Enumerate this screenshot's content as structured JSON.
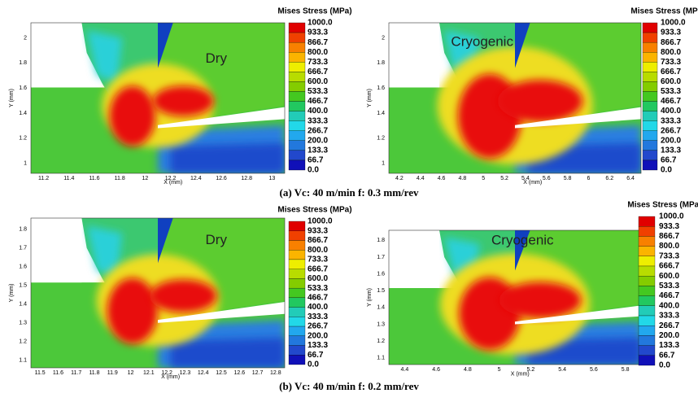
{
  "colorbar": {
    "title": "Mises Stress (MPa)",
    "labels": [
      "1000.0",
      "933.3",
      "866.7",
      "800.0",
      "733.3",
      "666.7",
      "600.0",
      "533.3",
      "466.7",
      "400.0",
      "333.3",
      "266.7",
      "200.0",
      "133.3",
      "66.7",
      "0.0"
    ]
  },
  "panels": [
    {
      "label": "Dry",
      "x_axis": "X (mm)",
      "y_axis": "Y (mm)",
      "xticks": [
        "11.2",
        "11.4",
        "11.6",
        "11.8",
        "12",
        "12.2",
        "12.4",
        "12.6",
        "12.8",
        "13"
      ],
      "yticks": [
        "1",
        "1.2",
        "1.4",
        "1.6",
        "1.8",
        "2"
      ]
    },
    {
      "label": "Cryogenic",
      "x_axis": "X (mm)",
      "y_axis": "Y (mm)",
      "xticks": [
        "4.2",
        "4.4",
        "4.6",
        "4.8",
        "5",
        "5.2",
        "5.4",
        "5.6",
        "5.8",
        "6",
        "6.2",
        "6.4"
      ],
      "yticks": [
        "1",
        "1.2",
        "1.4",
        "1.6",
        "1.8",
        "2"
      ]
    },
    {
      "label": "Dry",
      "x_axis": "X (mm)",
      "y_axis": "Y (mm)",
      "xticks": [
        "11.5",
        "11.6",
        "11.7",
        "11.8",
        "11.9",
        "12",
        "12.1",
        "12.2",
        "12.3",
        "12.4",
        "12.5",
        "12.6",
        "12.7",
        "12.8"
      ],
      "yticks": [
        "1.1",
        "1.2",
        "1.3",
        "1.4",
        "1.5",
        "1.6",
        "1.7",
        "1.8"
      ]
    },
    {
      "label": "Cryogenic",
      "x_axis": "X (mm)",
      "y_axis": "Y (mm)",
      "xticks": [
        "4.4",
        "4.6",
        "4.8",
        "5",
        "5.2",
        "5.4",
        "5.6",
        "5.8"
      ],
      "yticks": [
        "1.1",
        "1.2",
        "1.3",
        "1.4",
        "1.5",
        "1.6",
        "1.7",
        "1.8"
      ]
    }
  ],
  "captions": [
    "(a) Vc: 40 m/min f: 0.3 mm/rev",
    "(b) Vc: 40 m/min f: 0.2 mm/rev"
  ]
}
